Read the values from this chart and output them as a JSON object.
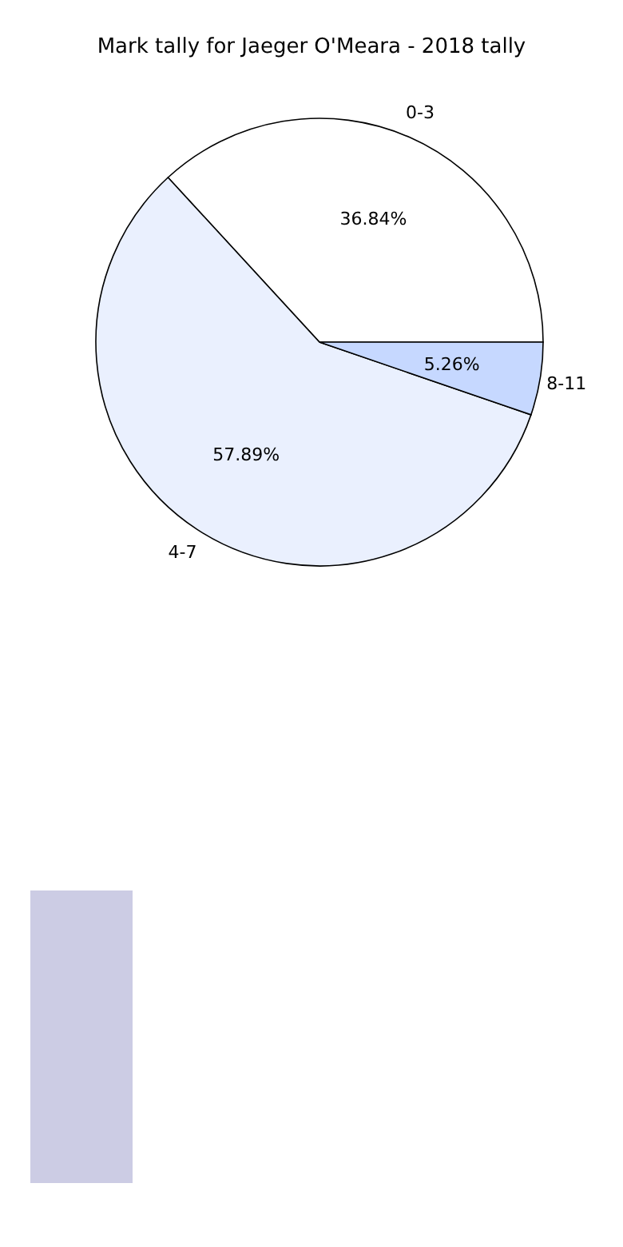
{
  "chart_data": {
    "type": "pie",
    "title": "Mark tally for Jaeger O'Meara - 2018 tally",
    "categories": [
      "0-3",
      "4-7",
      "8-11"
    ],
    "values": [
      36.84,
      57.89,
      5.26
    ],
    "colors": [
      "#ffffff",
      "#eaf0fe",
      "#c6d8ff"
    ],
    "value_labels": [
      "36.84%",
      "57.89%",
      "5.26%"
    ]
  }
}
